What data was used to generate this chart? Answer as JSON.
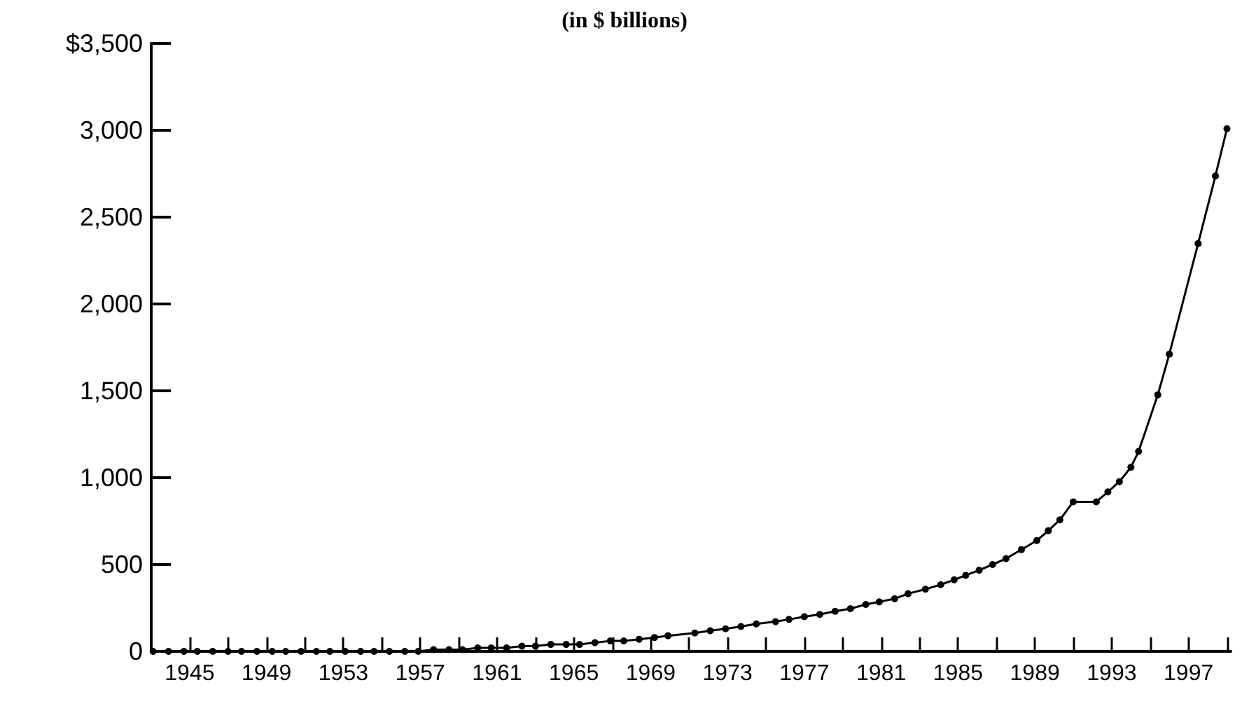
{
  "chart_data": {
    "type": "line",
    "title": "(in $ billions)",
    "marker": "circle",
    "line_style": "solid",
    "grid": false,
    "xlim": [
      1943,
      1999.2
    ],
    "xticks": [
      1945,
      {
        "value": 1947,
        "label": null
      },
      1949,
      {
        "value": 1951,
        "label": null
      },
      1953,
      {
        "value": 1955,
        "label": null
      },
      1957,
      {
        "value": 1959,
        "label": null
      },
      1961,
      {
        "value": 1963,
        "label": null
      },
      1965,
      {
        "value": 1967,
        "label": null
      },
      1969,
      {
        "value": 1971,
        "label": null
      },
      1973,
      {
        "value": 1975,
        "label": null
      },
      1977,
      {
        "value": 1979,
        "label": null
      },
      1981,
      {
        "value": 1983,
        "label": null
      },
      1985,
      {
        "value": 1987,
        "label": null
      },
      1989,
      {
        "value": 1991,
        "label": null
      },
      1993,
      {
        "value": 1995,
        "label": null
      },
      1997,
      {
        "value": 1999,
        "label": null
      }
    ],
    "ylim": [
      0,
      3500
    ],
    "yticks": [
      0,
      500,
      {
        "value": 1000,
        "label": "1,000"
      },
      {
        "value": 1500,
        "label": "1,500"
      },
      {
        "value": 2000,
        "label": "2,000"
      },
      {
        "value": 2500,
        "label": "2,500"
      },
      {
        "value": 3000,
        "label": "3,000"
      },
      {
        "value": 3500,
        "label": "$3,500"
      }
    ],
    "series": [
      {
        "color": "#000000",
        "x": [
          1943.1,
          1943.9,
          1944.7,
          1945.4,
          1946.2,
          1947.0,
          1947.7,
          1948.5,
          1949.3,
          1950.0,
          1950.8,
          1951.6,
          1952.3,
          1953.1,
          1953.9,
          1954.6,
          1955.4,
          1956.2,
          1956.9,
          1957.7,
          1958.5,
          1959.2,
          1960.0,
          1960.7,
          1961.5,
          1962.3,
          1963.0,
          1963.8,
          1964.6,
          1965.3,
          1966.1,
          1966.9,
          1967.6,
          1968.4,
          1969.2,
          1969.9,
          1971.3,
          1972.1,
          1972.9,
          1973.7,
          1974.5,
          1975.5,
          1976.2,
          1977.0,
          1977.8,
          1978.6,
          1979.4,
          1980.2,
          1980.9,
          1981.7,
          1982.4,
          1983.3,
          1984.1,
          1984.8,
          1985.4,
          1986.1,
          1986.8,
          1987.5,
          1988.3,
          1989.1,
          1989.7,
          1990.3,
          1991.0,
          1992.2,
          1992.8,
          1993.4,
          1994.0,
          1994.4,
          1995.4,
          1996.0,
          1997.5,
          1998.4,
          1999.0
        ],
        "values": [
          0,
          0,
          0,
          0,
          0,
          0,
          0,
          0,
          0,
          0,
          0,
          0,
          0,
          0,
          0,
          0,
          0,
          0,
          0,
          10,
          10,
          10,
          20,
          20,
          20,
          30,
          30,
          40,
          40,
          40,
          50,
          60,
          60,
          70,
          80,
          90,
          106,
          119,
          130,
          143,
          158,
          171,
          184,
          200,
          213,
          231,
          246,
          270,
          285,
          303,
          332,
          358,
          384,
          412,
          438,
          467,
          500,
          534,
          586,
          638,
          695,
          757,
          861,
          861,
          918,
          977,
          1060,
          1151,
          1477,
          1711,
          2348,
          2737,
          3009
        ]
      }
    ]
  }
}
